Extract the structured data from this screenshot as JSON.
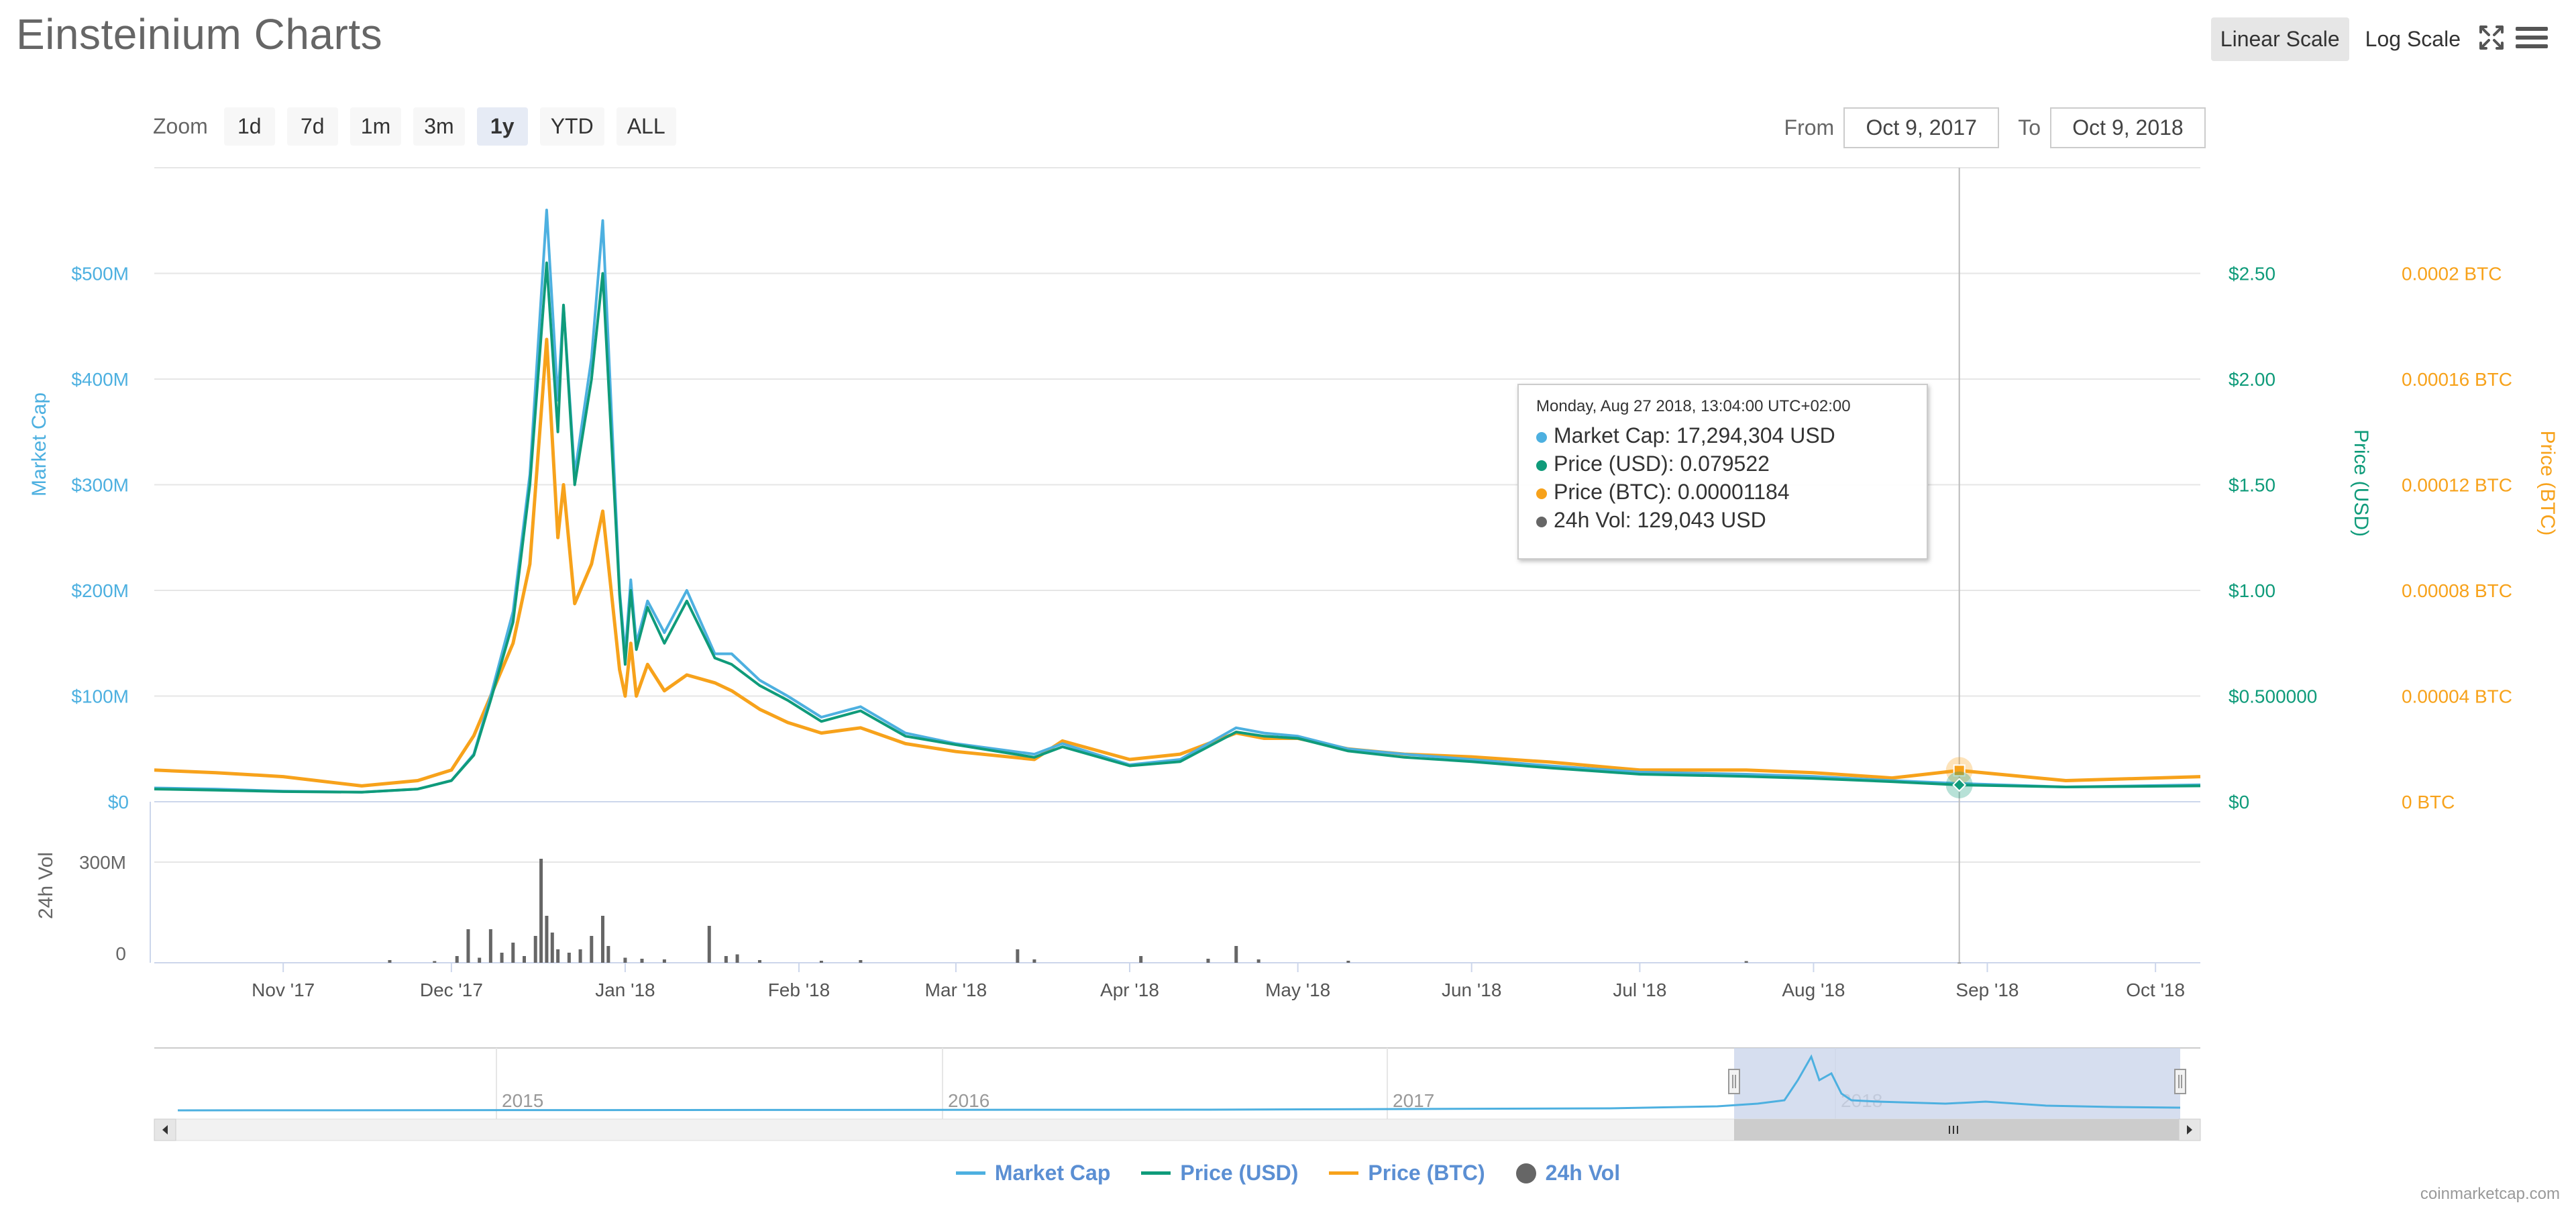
{
  "title": "Einsteinium Charts",
  "scale": {
    "linear_label": "Linear Scale",
    "log_label": "Log Scale",
    "active": "linear"
  },
  "icons": {
    "fullscreen": "fullscreen-icon",
    "menu": "hamburger-menu-icon"
  },
  "zoom": {
    "label": "Zoom",
    "options": [
      "1d",
      "7d",
      "1m",
      "3m",
      "1y",
      "YTD",
      "ALL"
    ],
    "active": "1y"
  },
  "range": {
    "from_label": "From",
    "from_value": "Oct 9, 2017",
    "to_label": "To",
    "to_value": "Oct 9, 2018"
  },
  "tooltip": {
    "date": "Monday, Aug 27 2018, 13:04:00 UTC+02:00",
    "rows": [
      {
        "label": "Market Cap:",
        "value": "17,294,304 USD",
        "color": "#4db0e0"
      },
      {
        "label": "Price (USD):",
        "value": "0.079522",
        "color": "#0f9b7a"
      },
      {
        "label": "Price (BTC):",
        "value": "0.00001184",
        "color": "#f7a21b"
      },
      {
        "label": "24h Vol:",
        "value": "129,043 USD",
        "color": "#666666"
      }
    ]
  },
  "legend": [
    {
      "label": "Market Cap",
      "color": "#4db0e0",
      "marker": "line"
    },
    {
      "label": "Price (USD)",
      "color": "#0f9b7a",
      "marker": "line"
    },
    {
      "label": "Price (BTC)",
      "color": "#f7a21b",
      "marker": "line"
    },
    {
      "label": "24h Vol",
      "color": "#666666",
      "marker": "dot"
    }
  ],
  "credit": "coinmarketcap.com",
  "colors": {
    "market_cap": "#4db0e0",
    "price_usd": "#0f9b7a",
    "price_btc": "#f7a21b",
    "volume": "#666666",
    "navigator_mask": "#ccd6eb"
  },
  "chart_data": {
    "type": "line",
    "x_range": [
      "2017-10-09",
      "2018-10-09"
    ],
    "x_ticks": [
      "Nov '17",
      "Dec '17",
      "Jan '18",
      "Feb '18",
      "Mar '18",
      "Apr '18",
      "May '18",
      "Jun '18",
      "Jul '18",
      "Aug '18",
      "Sep '18",
      "Oct '18"
    ],
    "x_tick_dates": [
      "2017-11-01",
      "2017-12-01",
      "2018-01-01",
      "2018-02-01",
      "2018-03-01",
      "2018-04-01",
      "2018-05-01",
      "2018-06-01",
      "2018-07-01",
      "2018-08-01",
      "2018-09-01",
      "2018-10-01"
    ],
    "axes": {
      "market_cap": {
        "title": "Market Cap",
        "ticks": [
          "$0",
          "$100M",
          "$200M",
          "$300M",
          "$400M",
          "$500M"
        ],
        "range": [
          0,
          600000000
        ]
      },
      "price_usd": {
        "title": "Price (USD)",
        "ticks": [
          "$0",
          "$0.500000",
          "$1.00",
          "$1.50",
          "$2.00",
          "$2.50"
        ],
        "range": [
          0,
          3.0
        ]
      },
      "price_btc": {
        "title": "Price (BTC)",
        "ticks": [
          "0 BTC",
          "0.00004 BTC",
          "0.00008 BTC",
          "0.00012 BTC",
          "0.00016 BTC",
          "0.0002 BTC"
        ],
        "range": [
          0,
          0.00024
        ]
      },
      "volume": {
        "title": "24h Vol",
        "ticks": [
          "0",
          "300M"
        ],
        "range": [
          0,
          450000000
        ]
      }
    },
    "series": [
      {
        "name": "Market Cap",
        "axis": "market_cap",
        "x": [
          "2017-10-09",
          "2017-10-20",
          "2017-11-01",
          "2017-11-15",
          "2017-11-25",
          "2017-12-01",
          "2017-12-05",
          "2017-12-08",
          "2017-12-12",
          "2017-12-15",
          "2017-12-18",
          "2017-12-20",
          "2017-12-21",
          "2017-12-23",
          "2017-12-26",
          "2017-12-28",
          "2017-12-31",
          "2018-01-01",
          "2018-01-02",
          "2018-01-03",
          "2018-01-05",
          "2018-01-08",
          "2018-01-12",
          "2018-01-17",
          "2018-01-20",
          "2018-01-25",
          "2018-01-30",
          "2018-02-05",
          "2018-02-12",
          "2018-02-20",
          "2018-03-01",
          "2018-03-15",
          "2018-03-20",
          "2018-04-01",
          "2018-04-10",
          "2018-04-20",
          "2018-04-25",
          "2018-05-01",
          "2018-05-10",
          "2018-05-20",
          "2018-06-01",
          "2018-06-15",
          "2018-07-01",
          "2018-07-20",
          "2018-08-01",
          "2018-08-15",
          "2018-08-27",
          "2018-09-15",
          "2018-10-09"
        ],
        "values": [
          13000000,
          12000000,
          10000000,
          9000000,
          12000000,
          20000000,
          45000000,
          100000000,
          180000000,
          310000000,
          560000000,
          380000000,
          470000000,
          310000000,
          420000000,
          550000000,
          200000000,
          140000000,
          210000000,
          150000000,
          190000000,
          160000000,
          200000000,
          140000000,
          140000000,
          115000000,
          100000000,
          80000000,
          90000000,
          65000000,
          55000000,
          45000000,
          55000000,
          35000000,
          40000000,
          70000000,
          65000000,
          62000000,
          50000000,
          45000000,
          40000000,
          34000000,
          28000000,
          26000000,
          24000000,
          20000000,
          17294304,
          14000000,
          16000000
        ]
      },
      {
        "name": "Price (USD)",
        "axis": "price_usd",
        "x": [
          "2017-10-09",
          "2017-10-20",
          "2017-11-01",
          "2017-11-15",
          "2017-11-25",
          "2017-12-01",
          "2017-12-05",
          "2017-12-08",
          "2017-12-12",
          "2017-12-15",
          "2017-12-18",
          "2017-12-20",
          "2017-12-21",
          "2017-12-23",
          "2017-12-26",
          "2017-12-28",
          "2017-12-31",
          "2018-01-01",
          "2018-01-02",
          "2018-01-03",
          "2018-01-05",
          "2018-01-08",
          "2018-01-12",
          "2018-01-17",
          "2018-01-20",
          "2018-01-25",
          "2018-01-30",
          "2018-02-05",
          "2018-02-12",
          "2018-02-20",
          "2018-03-01",
          "2018-03-15",
          "2018-03-20",
          "2018-04-01",
          "2018-04-10",
          "2018-04-20",
          "2018-04-25",
          "2018-05-01",
          "2018-05-10",
          "2018-05-20",
          "2018-06-01",
          "2018-06-15",
          "2018-07-01",
          "2018-07-20",
          "2018-08-01",
          "2018-08-15",
          "2018-08-27",
          "2018-09-15",
          "2018-10-09"
        ],
        "values": [
          0.06,
          0.055,
          0.048,
          0.045,
          0.06,
          0.1,
          0.22,
          0.48,
          0.85,
          1.5,
          2.55,
          1.75,
          2.35,
          1.5,
          2.0,
          2.5,
          0.98,
          0.65,
          1.0,
          0.72,
          0.92,
          0.75,
          0.95,
          0.68,
          0.65,
          0.55,
          0.48,
          0.38,
          0.43,
          0.31,
          0.27,
          0.21,
          0.26,
          0.17,
          0.19,
          0.33,
          0.31,
          0.3,
          0.24,
          0.21,
          0.19,
          0.16,
          0.13,
          0.12,
          0.11,
          0.095,
          0.079522,
          0.07,
          0.075
        ]
      },
      {
        "name": "Price (BTC)",
        "axis": "price_btc",
        "x": [
          "2017-10-09",
          "2017-10-20",
          "2017-11-01",
          "2017-11-15",
          "2017-11-25",
          "2017-12-01",
          "2017-12-05",
          "2017-12-08",
          "2017-12-12",
          "2017-12-15",
          "2017-12-18",
          "2017-12-20",
          "2017-12-21",
          "2017-12-23",
          "2017-12-26",
          "2017-12-28",
          "2017-12-31",
          "2018-01-01",
          "2018-01-02",
          "2018-01-03",
          "2018-01-05",
          "2018-01-08",
          "2018-01-12",
          "2018-01-17",
          "2018-01-20",
          "2018-01-25",
          "2018-01-30",
          "2018-02-05",
          "2018-02-12",
          "2018-02-20",
          "2018-03-01",
          "2018-03-15",
          "2018-03-20",
          "2018-04-01",
          "2018-04-10",
          "2018-04-20",
          "2018-04-25",
          "2018-05-01",
          "2018-05-10",
          "2018-05-20",
          "2018-06-01",
          "2018-06-15",
          "2018-07-01",
          "2018-07-20",
          "2018-08-01",
          "2018-08-15",
          "2018-08-27",
          "2018-09-15",
          "2018-10-09"
        ],
        "values": [
          1.2e-05,
          1.1e-05,
          9.5e-06,
          6e-06,
          8e-06,
          1.2e-05,
          2.5e-05,
          4e-05,
          6e-05,
          9e-05,
          0.000175,
          0.0001,
          0.00012,
          7.5e-05,
          9e-05,
          0.00011,
          5e-05,
          4e-05,
          6e-05,
          4e-05,
          5.2e-05,
          4.2e-05,
          4.8e-05,
          4.5e-05,
          4.2e-05,
          3.5e-05,
          3e-05,
          2.6e-05,
          2.8e-05,
          2.2e-05,
          1.9e-05,
          1.6e-05,
          2.3e-05,
          1.6e-05,
          1.8e-05,
          2.6e-05,
          2.4e-05,
          2.4e-05,
          2e-05,
          1.8e-05,
          1.7e-05,
          1.5e-05,
          1.2e-05,
          1.2e-05,
          1.1e-05,
          9e-06,
          1.184e-05,
          8e-06,
          9.5e-06
        ]
      },
      {
        "name": "24h Vol",
        "axis": "volume",
        "type": "column",
        "x": [
          "2017-11-20",
          "2017-11-28",
          "2017-12-02",
          "2017-12-04",
          "2017-12-06",
          "2017-12-08",
          "2017-12-10",
          "2017-12-12",
          "2017-12-14",
          "2017-12-16",
          "2017-12-17",
          "2017-12-18",
          "2017-12-19",
          "2017-12-20",
          "2017-12-22",
          "2017-12-24",
          "2017-12-26",
          "2017-12-28",
          "2017-12-29",
          "2018-01-01",
          "2018-01-04",
          "2018-01-08",
          "2018-01-16",
          "2018-01-19",
          "2018-01-21",
          "2018-01-25",
          "2018-02-05",
          "2018-02-12",
          "2018-03-12",
          "2018-03-15",
          "2018-04-03",
          "2018-04-15",
          "2018-04-20",
          "2018-04-24",
          "2018-05-10",
          "2018-07-20",
          "2018-08-27"
        ],
        "values": [
          8000000,
          5000000,
          20000000,
          100000000,
          15000000,
          100000000,
          30000000,
          60000000,
          20000000,
          80000000,
          310000000,
          140000000,
          90000000,
          40000000,
          30000000,
          40000000,
          80000000,
          140000000,
          50000000,
          15000000,
          12000000,
          10000000,
          110000000,
          20000000,
          25000000,
          8000000,
          6000000,
          8000000,
          40000000,
          10000000,
          20000000,
          12000000,
          50000000,
          10000000,
          6000000,
          5000000,
          129043
        ]
      }
    ],
    "navigator": {
      "x_labels": [
        "2015",
        "2016",
        "2017",
        "2018"
      ],
      "selection": [
        "2017-10-09",
        "2018-10-09"
      ]
    },
    "crosshair_date": "2018-08-27",
    "grid": true,
    "legend_position": "bottom-center"
  }
}
